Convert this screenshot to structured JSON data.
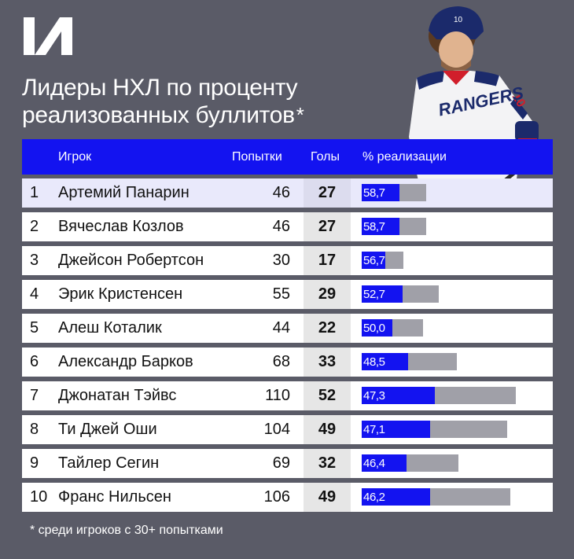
{
  "title": {
    "line1": "Лидеры НХЛ по проценту",
    "line2": "реализованных буллитов",
    "star": "*"
  },
  "headers": {
    "player": "Игрок",
    "attempts": "Попытки",
    "goals": "Голы",
    "percent": "% реализации"
  },
  "rows": [
    {
      "rank": "1",
      "name": "Артемий Панарин",
      "attempts": "46",
      "goals": "27",
      "pct_label": "58,7"
    },
    {
      "rank": "2",
      "name": "Вячеслав Козлов",
      "attempts": "46",
      "goals": "27",
      "pct_label": "58,7"
    },
    {
      "rank": "3",
      "name": "Джейсон Робертсон",
      "attempts": "30",
      "goals": "17",
      "pct_label": "56,7"
    },
    {
      "rank": "4",
      "name": "Эрик Кристенсен",
      "attempts": "55",
      "goals": "29",
      "pct_label": "52,7"
    },
    {
      "rank": "5",
      "name": "Алеш Коталик",
      "attempts": "44",
      "goals": "22",
      "pct_label": "50,0"
    },
    {
      "rank": "6",
      "name": "Александр Барков",
      "attempts": "68",
      "goals": "33",
      "pct_label": "48,5"
    },
    {
      "rank": "7",
      "name": "Джонатан Тэйвс",
      "attempts": "110",
      "goals": "52",
      "pct_label": "47,3"
    },
    {
      "rank": "8",
      "name": "Ти Джей Оши",
      "attempts": "104",
      "goals": "49",
      "pct_label": "47,1"
    },
    {
      "rank": "9",
      "name": "Тайлер Сегин",
      "attempts": "69",
      "goals": "32",
      "pct_label": "46,4"
    },
    {
      "rank": "10",
      "name": "Франс Нильсен",
      "attempts": "106",
      "goals": "49",
      "pct_label": "46,2"
    }
  ],
  "footnote": "* среди игроков с 30+ попытками",
  "colors": {
    "background": "#5a5b67",
    "accent_blue": "#1313f0",
    "bar_gray": "#a0a0a8",
    "highlight_row": "#e9e9fb"
  },
  "chart_data": {
    "type": "bar",
    "categories": [
      "Артемий Панарин",
      "Вячеслав Козлов",
      "Джейсон Робертсон",
      "Эрик Кристенсен",
      "Алеш Коталик",
      "Александр Барков",
      "Джонатан Тэйвс",
      "Ти Джей Оши",
      "Тайлер Сегин",
      "Франс Нильсен"
    ],
    "series": [
      {
        "name": "Попытки",
        "values": [
          46,
          46,
          30,
          55,
          44,
          68,
          110,
          104,
          69,
          106
        ]
      },
      {
        "name": "Голы",
        "values": [
          27,
          27,
          17,
          29,
          22,
          33,
          52,
          49,
          32,
          49
        ]
      },
      {
        "name": "% реализации",
        "values": [
          58.7,
          58.7,
          56.7,
          52.7,
          50.0,
          48.5,
          47.3,
          47.1,
          46.4,
          46.2
        ]
      }
    ],
    "title": "Лидеры НХЛ по проценту реализованных буллитов*",
    "bar_scale_max_attempts": 110
  }
}
